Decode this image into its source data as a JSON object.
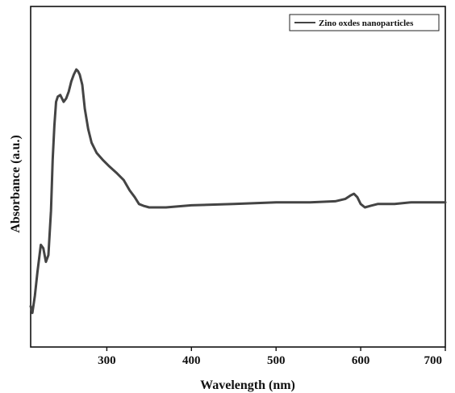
{
  "chart_data": {
    "type": "line",
    "xlabel": "Wavelength (nm)",
    "ylabel": "Absorbance (a.u.)",
    "xlim": [
      210,
      700
    ],
    "ylim": [
      0,
      1
    ],
    "x_ticks": [
      300,
      400,
      500,
      600,
      700
    ],
    "y_ticks_labeled": false,
    "grid": false,
    "legend": {
      "placement": "top-right",
      "entries": [
        "Zino oxdes nanoparticles"
      ]
    },
    "series": [
      {
        "name": "Zino oxdes nanoparticles",
        "color": "#444444",
        "x": [
          210,
          212,
          215,
          218,
          222,
          225,
          228,
          231,
          234,
          236,
          238,
          240,
          242,
          245,
          247,
          249,
          252,
          255,
          258,
          261,
          264,
          266,
          268,
          271,
          274,
          278,
          282,
          288,
          295,
          303,
          312,
          320,
          327,
          333,
          338,
          343,
          350,
          360,
          370,
          380,
          400,
          450,
          500,
          540,
          570,
          582,
          588,
          592,
          596,
          600,
          605,
          612,
          620,
          640,
          660,
          680,
          700
        ],
        "y": [
          0.12,
          0.1,
          0.15,
          0.22,
          0.3,
          0.29,
          0.25,
          0.27,
          0.4,
          0.55,
          0.65,
          0.72,
          0.735,
          0.74,
          0.73,
          0.72,
          0.73,
          0.75,
          0.78,
          0.8,
          0.815,
          0.81,
          0.8,
          0.77,
          0.7,
          0.64,
          0.6,
          0.57,
          0.55,
          0.53,
          0.51,
          0.49,
          0.46,
          0.44,
          0.42,
          0.415,
          0.41,
          0.41,
          0.41,
          0.412,
          0.416,
          0.42,
          0.425,
          0.425,
          0.428,
          0.435,
          0.445,
          0.45,
          0.44,
          0.42,
          0.41,
          0.415,
          0.42,
          0.42,
          0.425,
          0.425,
          0.425
        ]
      }
    ]
  }
}
